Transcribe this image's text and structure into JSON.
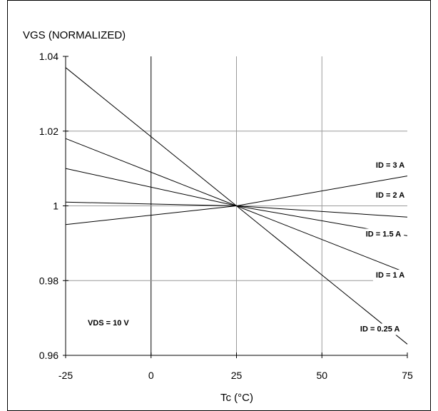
{
  "chart_data": {
    "type": "line",
    "title": "",
    "ylabel": "VGS (NORMALIZED)",
    "xlabel": "Tc (°C)",
    "xlim": [
      -25,
      75
    ],
    "ylim": [
      0.96,
      1.04
    ],
    "xticks": [
      -25,
      0,
      25,
      50,
      75
    ],
    "xtick_labels": [
      "-25",
      "0",
      "25",
      "50",
      "75"
    ],
    "yticks": [
      0.96,
      0.98,
      1,
      1.02,
      1.04
    ],
    "ytick_labels": [
      "0.96",
      "0.98",
      "1",
      "1.02",
      "1.04"
    ],
    "grid": true,
    "series": [
      {
        "name": "ID = 3 A",
        "x": [
          -25,
          25,
          75
        ],
        "y": [
          0.995,
          1.0,
          1.008
        ]
      },
      {
        "name": "ID = 2 A",
        "x": [
          -25,
          25,
          75
        ],
        "y": [
          1.001,
          1.0,
          0.997
        ]
      },
      {
        "name": "ID = 1.5 A",
        "x": [
          -25,
          25,
          75
        ],
        "y": [
          1.01,
          1.0,
          0.992
        ]
      },
      {
        "name": "ID = 1 A",
        "x": [
          -25,
          25,
          75
        ],
        "y": [
          1.018,
          1.0,
          0.982
        ]
      },
      {
        "name": "ID = 0.25 A",
        "x": [
          -25,
          25,
          75
        ],
        "y": [
          1.037,
          1.0,
          0.963
        ]
      }
    ],
    "annotations": [
      {
        "text": "ID = 3 A",
        "x": 70,
        "y": 1.0102
      },
      {
        "text": "ID = 2 A",
        "x": 70,
        "y": 1.0022
      },
      {
        "text": "ID = 1.5 A",
        "x": 68,
        "y": 0.9918
      },
      {
        "text": "ID = 1 A",
        "x": 70,
        "y": 0.9808
      },
      {
        "text": "ID = 0.25 A",
        "x": 67,
        "y": 0.9664
      },
      {
        "text": "VDS = 10 V",
        "x": -12.5,
        "y": 0.968
      }
    ]
  }
}
